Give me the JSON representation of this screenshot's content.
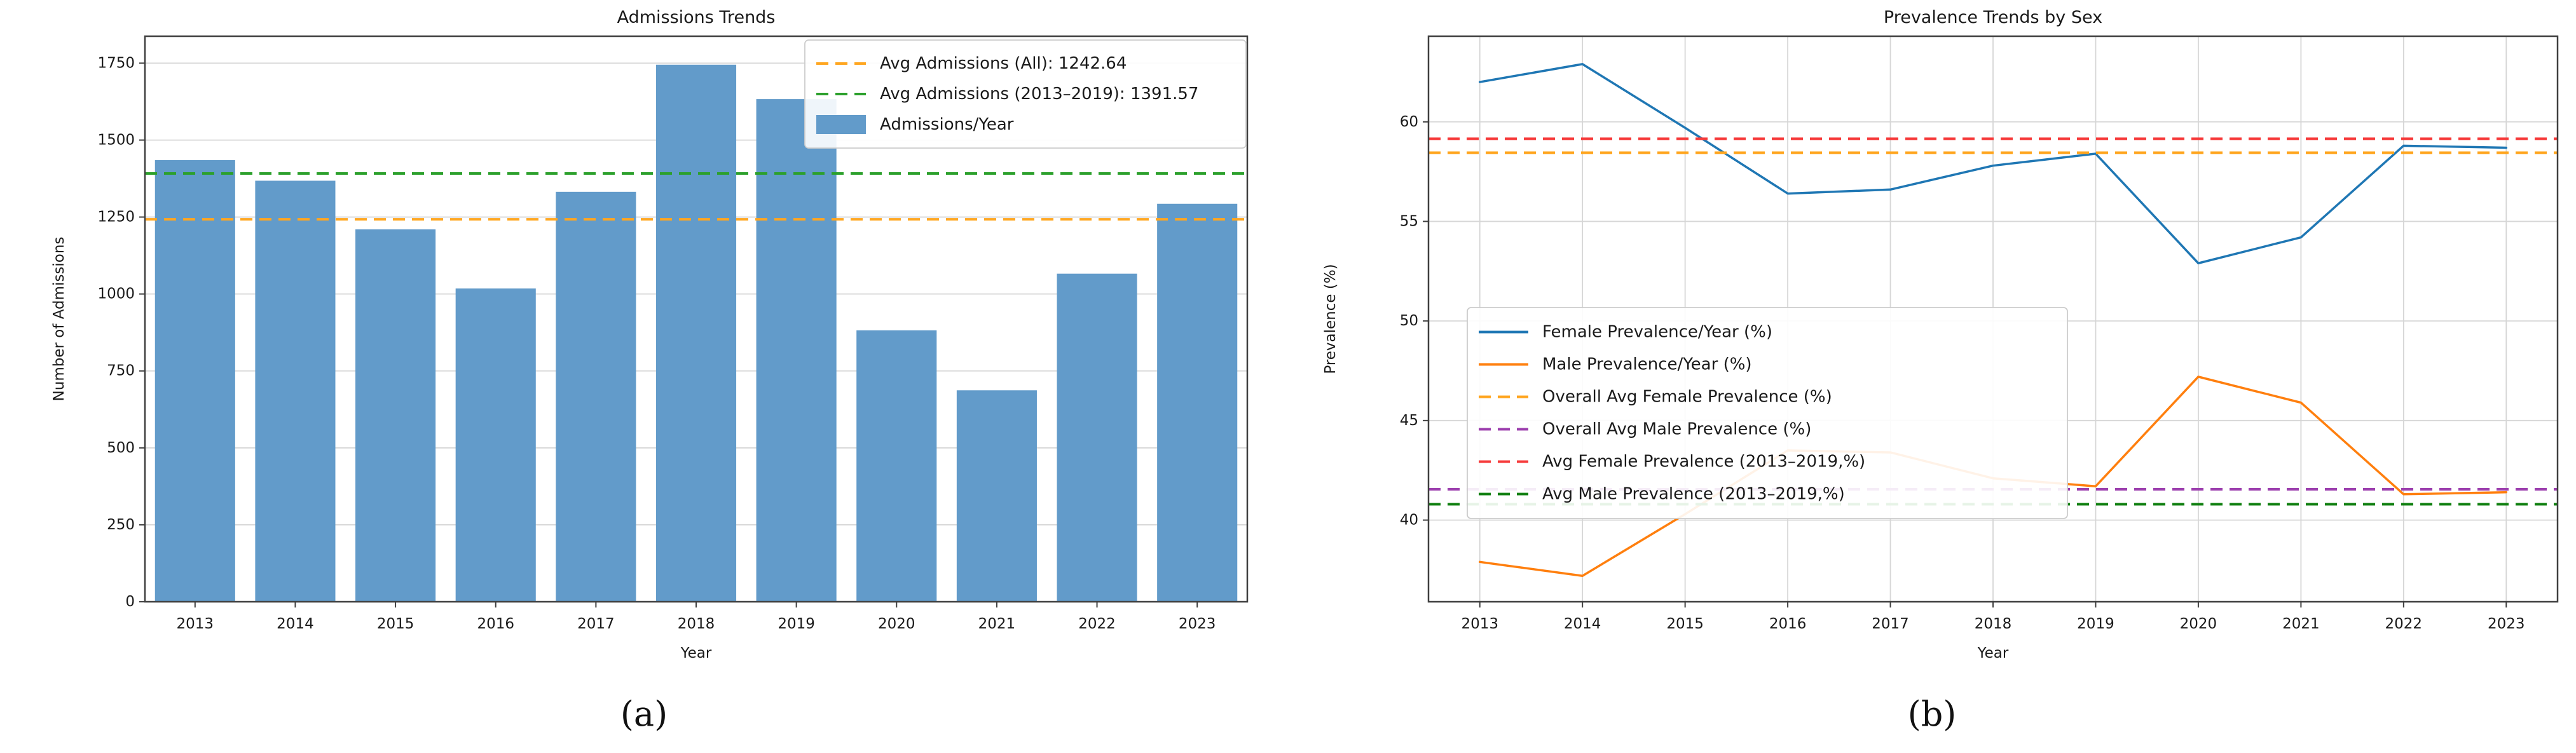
{
  "page": {
    "background": "#ffffff"
  },
  "captions": {
    "a": "(a)",
    "b": "(b)"
  },
  "chart_data": [
    {
      "id": "admissions-trends",
      "type": "bar",
      "title": "Admissions Trends",
      "xlabel": "Year",
      "ylabel": "Number of Admissions",
      "categories": [
        "2013",
        "2014",
        "2015",
        "2016",
        "2017",
        "2018",
        "2019",
        "2020",
        "2021",
        "2022",
        "2023"
      ],
      "values": [
        1435,
        1368,
        1210,
        1018,
        1332,
        1745,
        1633,
        882,
        687,
        1066,
        1293
      ],
      "series_label": "Admissions/Year",
      "bar_color": "#629bca",
      "ylim": [
        0,
        1837.5
      ],
      "yticks": [
        0,
        250,
        500,
        750,
        1000,
        1250,
        1500,
        1750
      ],
      "grid": "y",
      "legend_position": "top-right",
      "ref_lines": [
        {
          "label": "Avg Admissions (All): 1242.64",
          "value": 1242.64,
          "color": "#ffa620",
          "style": "dashed"
        },
        {
          "label": "Avg Admissions (2013–2019): 1391.57",
          "value": 1391.57,
          "color": "#2ca02c",
          "style": "dashed"
        }
      ]
    },
    {
      "id": "prevalence-trends",
      "type": "line",
      "title": "Prevalence Trends by Sex",
      "xlabel": "Year",
      "ylabel": "Prevalence (%)",
      "x": [
        "2013",
        "2014",
        "2015",
        "2016",
        "2017",
        "2018",
        "2019",
        "2020",
        "2021",
        "2022",
        "2023"
      ],
      "series": [
        {
          "name": "Female Prevalence/Year (%)",
          "color": "#1f77b4",
          "values": [
            62.0,
            62.9,
            59.7,
            56.4,
            56.6,
            57.8,
            58.4,
            52.9,
            54.2,
            58.8,
            58.7
          ]
        },
        {
          "name": "Male Prevalence/Year (%)",
          "color": "#ff7f0e",
          "values": [
            37.9,
            37.2,
            40.3,
            43.5,
            43.4,
            42.1,
            41.7,
            47.2,
            45.9,
            41.3,
            41.4
          ]
        }
      ],
      "ref_lines": [
        {
          "label": "Overall Avg Female Prevalence (%)",
          "value": 58.45,
          "color": "#ffa620",
          "style": "dashed"
        },
        {
          "label": "Overall Avg Male Prevalence (%)",
          "value": 41.55,
          "color": "#9c3fae",
          "style": "dashed"
        },
        {
          "label": "Avg Female Prevalence (2013–2019,%)",
          "value": 59.15,
          "color": "#f63b3b",
          "style": "dashed"
        },
        {
          "label": "Avg Male Prevalence (2013–2019,%)",
          "value": 40.8,
          "color": "#128012",
          "style": "dashed"
        }
      ],
      "ylim": [
        35.9,
        64.3
      ],
      "yticks": [
        40,
        45,
        50,
        55,
        60
      ],
      "grid": "xy",
      "legend_position": "center-left"
    }
  ]
}
